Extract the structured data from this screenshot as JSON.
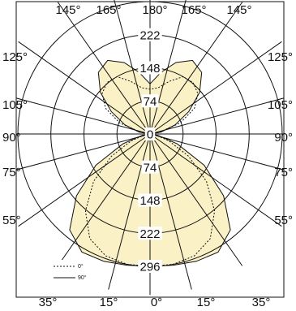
{
  "chart_data": {
    "type": "polar",
    "colors": {
      "fill": "#fbf1c6",
      "outline": "#111111",
      "grid": "#111111",
      "background": "#ffffff"
    },
    "radial_ticks": [
      "0",
      "74",
      "148",
      "222",
      "296"
    ],
    "radial_values": [
      0,
      74,
      148,
      222,
      296
    ],
    "angle_labels_top": [
      "145°",
      "165°",
      "180°",
      "165°",
      "145°"
    ],
    "angle_labels_left": [
      "125°",
      "105°",
      "90°",
      "75°",
      "55°"
    ],
    "angle_labels_right": [
      "125°",
      "105°",
      "90°",
      "75°",
      "55°"
    ],
    "angle_labels_bottom": [
      "35°",
      "15°",
      "0°",
      "15°",
      "35°"
    ],
    "legend": [
      {
        "name": "0°",
        "style": "dashed"
      },
      {
        "name": "90°",
        "style": "solid"
      }
    ],
    "series": [
      {
        "name": "0°",
        "style": "dashed",
        "points": [
          [
            0,
            296
          ],
          [
            10,
            296
          ],
          [
            20,
            290
          ],
          [
            30,
            270
          ],
          [
            40,
            225
          ],
          [
            50,
            165
          ],
          [
            60,
            100
          ],
          [
            70,
            45
          ],
          [
            80,
            12
          ],
          [
            90,
            0
          ],
          [
            100,
            20
          ],
          [
            110,
            72
          ],
          [
            120,
            115
          ],
          [
            130,
            140
          ],
          [
            140,
            150
          ],
          [
            150,
            148
          ],
          [
            160,
            125
          ],
          [
            170,
            105
          ],
          [
            180,
            100
          ]
        ]
      },
      {
        "name": "90°",
        "style": "solid",
        "points": [
          [
            0,
            296
          ],
          [
            10,
            298
          ],
          [
            20,
            303
          ],
          [
            30,
            305
          ],
          [
            40,
            280
          ],
          [
            50,
            215
          ],
          [
            60,
            140
          ],
          [
            70,
            65
          ],
          [
            80,
            18
          ],
          [
            90,
            0
          ],
          [
            100,
            25
          ],
          [
            110,
            60
          ],
          [
            120,
            100
          ],
          [
            130,
            145
          ],
          [
            140,
            180
          ],
          [
            150,
            190
          ],
          [
            160,
            170
          ],
          [
            170,
            140
          ],
          [
            180,
            112
          ]
        ]
      }
    ]
  }
}
